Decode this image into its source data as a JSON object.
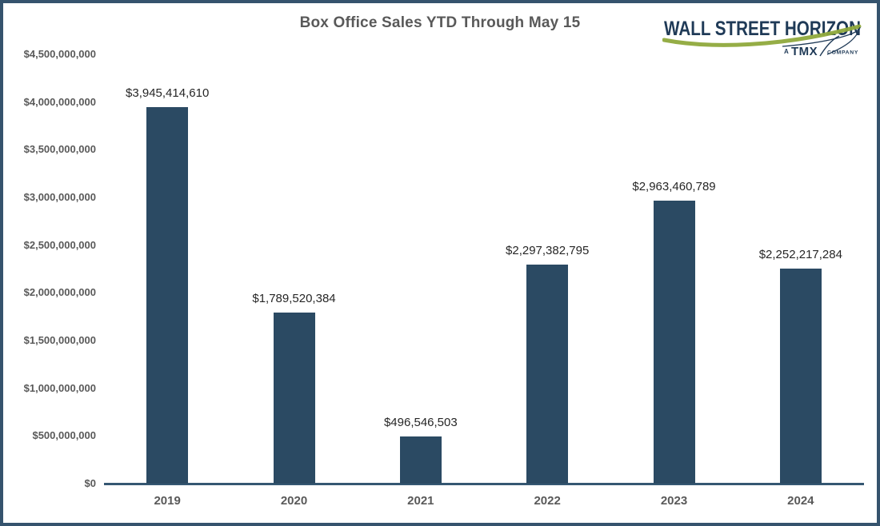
{
  "title": "Box Office Sales YTD Through May 15",
  "logo": {
    "brand": "WALL STREET HORIZON",
    "tagline_prefix": "A",
    "tagline_brand": "TMX",
    "tagline_suffix": "COMPANY"
  },
  "colors": {
    "bar": "#2b4a63",
    "axis_line": "#355772",
    "frame_border": "#35536d",
    "axis_text": "#595959",
    "value_label_text": "#262626",
    "logo_navy": "#1f3a57",
    "logo_green": "#8fa93c"
  },
  "chart_data": {
    "type": "bar",
    "title": "Box Office Sales YTD Through May 15",
    "categories": [
      "2019",
      "2020",
      "2021",
      "2022",
      "2023",
      "2024"
    ],
    "values": [
      3945414610,
      1789520384,
      496546503,
      2297382795,
      2963460789,
      2252217284
    ],
    "value_labels": [
      "$3,945,414,610",
      "$1,789,520,384",
      "$496,546,503",
      "$2,297,382,795",
      "$2,963,460,789",
      "$2,252,217,284"
    ],
    "xlabel": "",
    "ylabel": "",
    "ylim": [
      0,
      4500000000
    ],
    "ytick_step": 500000000,
    "ytick_labels": [
      "$0",
      "$500,000,000",
      "$1,000,000,000",
      "$1,500,000,000",
      "$2,000,000,000",
      "$2,500,000,000",
      "$3,000,000,000",
      "$3,500,000,000",
      "$4,000,000,000",
      "$4,500,000,000"
    ],
    "grid": false,
    "legend": false
  }
}
